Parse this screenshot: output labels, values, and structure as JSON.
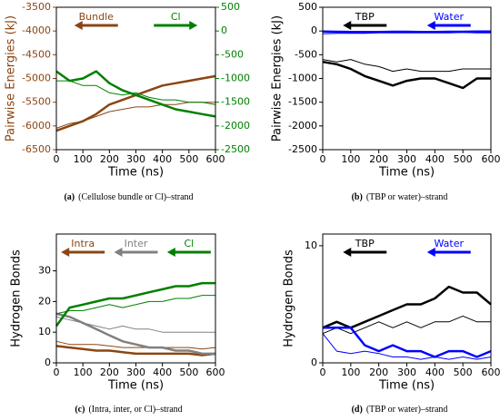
{
  "chart_data": [
    {
      "type": "line",
      "caption_label": "(a)",
      "caption": "(Cellulose bundle or Cl)–strand",
      "xlabel": "Time (ns)",
      "ylabel": "Pairwise Energies (kJ)",
      "ycolor": "#8b4513",
      "y2color": "#008000",
      "x": [
        0,
        50,
        100,
        150,
        200,
        250,
        300,
        350,
        400,
        450,
        500,
        550,
        600
      ],
      "xlim": [
        0,
        600
      ],
      "xticks": [
        0,
        100,
        200,
        300,
        400,
        500,
        600
      ],
      "ylim": [
        -6500,
        -3500
      ],
      "yticks": [
        -6500,
        -6000,
        -5500,
        -5000,
        -4500,
        -4000,
        -3500
      ],
      "y2lim": [
        -2500,
        500
      ],
      "y2ticks": [
        -2500,
        -2000,
        -1500,
        -1000,
        -500,
        0,
        500
      ],
      "series": [
        {
          "name": "Bundle",
          "color": "#8b4513",
          "linewidth": 2.5,
          "values": [
            -6100,
            -6000,
            -5900,
            -5750,
            -5550,
            -5450,
            -5350,
            -5250,
            -5150,
            -5100,
            -5050,
            -5000,
            -4950
          ]
        },
        {
          "color": "#8b4513",
          "linewidth": 1,
          "values": [
            -6050,
            -5950,
            -5900,
            -5800,
            -5700,
            -5650,
            -5600,
            -5600,
            -5550,
            -5550,
            -5500,
            -5500,
            -5500
          ]
        },
        {
          "name": "Cl",
          "color": "#008000",
          "linewidth": 2.5,
          "axis": "y2",
          "values": [
            -850,
            -1050,
            -1000,
            -850,
            -1100,
            -1250,
            -1350,
            -1450,
            -1550,
            -1650,
            -1700,
            -1750,
            -1800
          ]
        },
        {
          "color": "#008000",
          "linewidth": 1,
          "axis": "y2",
          "values": [
            -1050,
            -1050,
            -1150,
            -1150,
            -1300,
            -1350,
            -1300,
            -1400,
            -1450,
            -1450,
            -1500,
            -1500,
            -1550
          ]
        }
      ]
    },
    {
      "type": "line",
      "caption_label": "(b)",
      "caption": "(TBP or water)–strand",
      "xlabel": "Time (ns)",
      "ylabel": "Pairwise Energies (kJ)",
      "ycolor": "#000000",
      "x": [
        0,
        50,
        100,
        150,
        200,
        250,
        300,
        350,
        400,
        450,
        500,
        550,
        600
      ],
      "xlim": [
        0,
        600
      ],
      "xticks": [
        0,
        100,
        200,
        300,
        400,
        500,
        600
      ],
      "ylim": [
        -2500,
        500
      ],
      "yticks": [
        -2500,
        -2000,
        -1500,
        -1000,
        -500,
        0,
        500
      ],
      "series": [
        {
          "name": "TBP",
          "color": "#000000",
          "linewidth": 2.5,
          "values": [
            -650,
            -700,
            -800,
            -950,
            -1050,
            -1150,
            -1050,
            -1000,
            -1000,
            -1100,
            -1200,
            -1000,
            -1000
          ]
        },
        {
          "color": "#000000",
          "linewidth": 1,
          "values": [
            -600,
            -650,
            -600,
            -700,
            -750,
            -850,
            -800,
            -850,
            -850,
            -850,
            -800,
            -800,
            -800
          ]
        },
        {
          "name": "Water",
          "color": "#0000ff",
          "linewidth": 2.5,
          "values": [
            -10,
            -15,
            -20,
            -20,
            -20,
            -15,
            -15,
            -20,
            -20,
            -15,
            -15,
            -10,
            -10
          ]
        },
        {
          "color": "#0000ff",
          "linewidth": 1,
          "values": [
            -60,
            -50,
            -50,
            -50,
            -40,
            -40,
            -40,
            -40,
            -40,
            -40,
            -30,
            -40,
            -40
          ]
        }
      ]
    },
    {
      "type": "line",
      "caption_label": "(c)",
      "caption": "(Intra, inter, or Cl)–strand",
      "xlabel": "Time (ns)",
      "ylabel": "Hydrogen Bonds",
      "ycolor": "#000000",
      "x": [
        0,
        50,
        100,
        150,
        200,
        250,
        300,
        350,
        400,
        450,
        500,
        550,
        600
      ],
      "xlim": [
        0,
        600
      ],
      "xticks": [
        0,
        100,
        200,
        300,
        400,
        500,
        600
      ],
      "ylim": [
        0,
        42
      ],
      "yticks": [
        0,
        10,
        20,
        30
      ],
      "series": [
        {
          "name": "Intra",
          "color": "#8b4513",
          "linewidth": 2.5,
          "values": [
            5.5,
            5,
            4.5,
            4,
            4,
            3.5,
            3,
            3,
            3,
            3,
            3,
            2.5,
            3
          ]
        },
        {
          "color": "#8b4513",
          "linewidth": 1,
          "values": [
            7,
            6,
            6,
            6,
            5.5,
            5,
            5,
            5,
            5,
            5,
            5,
            4.5,
            5
          ]
        },
        {
          "name": "Inter",
          "color": "#808080",
          "linewidth": 2.5,
          "values": [
            16,
            15,
            13,
            11,
            9,
            7,
            6,
            5,
            5,
            4,
            4,
            3,
            3
          ]
        },
        {
          "color": "#808080",
          "linewidth": 1,
          "values": [
            15,
            14,
            13,
            12,
            11,
            12,
            11,
            11,
            10,
            10,
            10,
            10,
            10
          ]
        },
        {
          "name": "Cl",
          "color": "#008000",
          "linewidth": 2.5,
          "values": [
            12,
            18,
            19,
            20,
            21,
            21,
            22,
            23,
            24,
            25,
            25,
            26,
            26
          ]
        },
        {
          "color": "#008000",
          "linewidth": 1,
          "values": [
            16,
            17,
            17,
            18,
            19,
            18,
            19,
            20,
            20,
            21,
            21,
            22,
            22
          ]
        }
      ]
    },
    {
      "type": "line",
      "caption_label": "(d)",
      "caption": "(TBP or water)–strand",
      "xlabel": "Time (ns)",
      "ylabel": "Hydrogen Bonds",
      "ycolor": "#000000",
      "x": [
        0,
        50,
        100,
        150,
        200,
        250,
        300,
        350,
        400,
        450,
        500,
        550,
        600
      ],
      "xlim": [
        0,
        600
      ],
      "xticks": [
        0,
        100,
        200,
        300,
        400,
        500,
        600
      ],
      "ylim": [
        0,
        11
      ],
      "yticks": [
        0,
        10
      ],
      "series": [
        {
          "name": "TBP",
          "color": "#000000",
          "linewidth": 2.5,
          "values": [
            3,
            3.5,
            3,
            3.5,
            4,
            4.5,
            5,
            5,
            5.5,
            6.5,
            6,
            6,
            5
          ]
        },
        {
          "color": "#000000",
          "linewidth": 1,
          "values": [
            2.5,
            3,
            2.5,
            3,
            3.5,
            3,
            3.5,
            3,
            3.5,
            3.5,
            4,
            3.5,
            3.5
          ]
        },
        {
          "name": "Water",
          "color": "#0000ff",
          "linewidth": 2.5,
          "values": [
            3,
            3,
            3,
            1.5,
            1,
            1.5,
            1,
            1,
            0.5,
            1,
            1,
            0.5,
            1
          ]
        },
        {
          "color": "#0000ff",
          "linewidth": 1,
          "values": [
            2.5,
            1,
            0.8,
            1,
            0.8,
            0.5,
            0.5,
            0.3,
            0.5,
            0.3,
            0.5,
            0.3,
            0.5
          ]
        }
      ]
    }
  ]
}
